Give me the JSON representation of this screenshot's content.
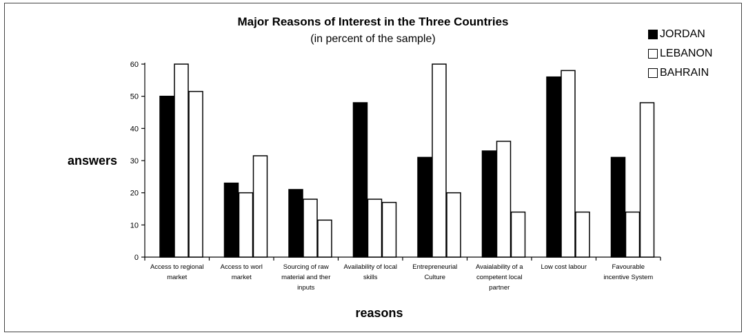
{
  "chart_data": {
    "type": "bar",
    "title": "Major Reasons of Interest in the Three Countries",
    "subtitle": "(in percent of the sample)",
    "xlabel": "reasons",
    "ylabel": "answers",
    "ylim": [
      0,
      60
    ],
    "yticks": [
      0,
      10,
      20,
      30,
      40,
      50,
      60
    ],
    "grid": false,
    "legend_position": "top-right",
    "categories": [
      [
        "Access to regional",
        "market"
      ],
      [
        "Access to worl",
        "market"
      ],
      [
        "Sourcing of raw",
        "material and ther",
        "inputs"
      ],
      [
        "Availability of local",
        "skills"
      ],
      [
        "Entrepreneurial",
        "Culture"
      ],
      [
        "Avaialability of a",
        "competent local",
        "partner"
      ],
      [
        "Low cost labour"
      ],
      [
        "Favourable",
        "incentive System"
      ]
    ],
    "series": [
      {
        "name": "JORDAN",
        "color": "#000000",
        "values": [
          50,
          23,
          21,
          48,
          31,
          33,
          56,
          31
        ]
      },
      {
        "name": "LEBANON",
        "color": "#ffffff",
        "values": [
          60,
          20,
          18,
          18,
          60,
          36,
          58,
          14
        ]
      },
      {
        "name": "BAHRAIN",
        "color": "#ffffff",
        "values": [
          51.5,
          31.5,
          11.5,
          17,
          20,
          14,
          14,
          48
        ]
      }
    ]
  }
}
